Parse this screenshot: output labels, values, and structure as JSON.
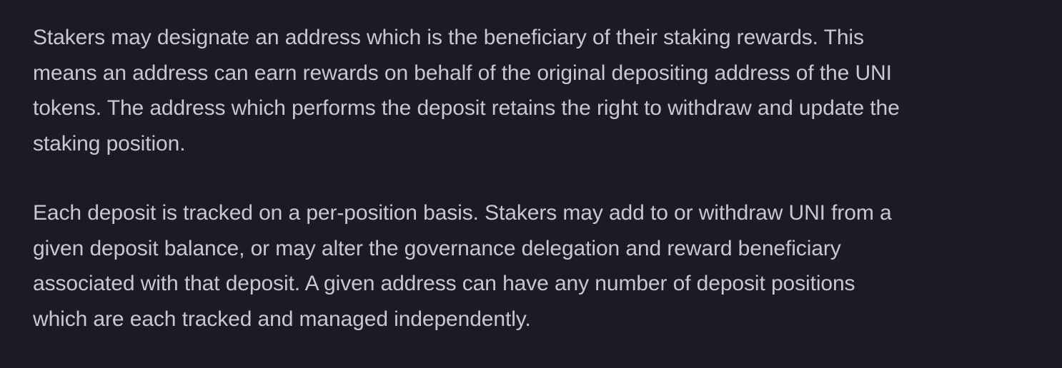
{
  "paragraphs": [
    {
      "lines": [
        "Stakers may designate an address which is the beneficiary of their staking rewards. This",
        "means an address can earn rewards on behalf of the original depositing address of the UNI",
        "tokens. The address which performs the deposit retains the right to withdraw and update the",
        "staking position."
      ]
    },
    {
      "lines": [
        "Each deposit is tracked on a per-position basis. Stakers may add to or withdraw UNI from a",
        "given deposit balance, or may alter the governance delegation and reward beneficiary",
        "associated with that deposit. A given address can have any number of deposit positions",
        "which are each tracked and managed independently."
      ]
    }
  ],
  "colors": {
    "background": "#1b1a27",
    "text": "#c9c7d4"
  }
}
